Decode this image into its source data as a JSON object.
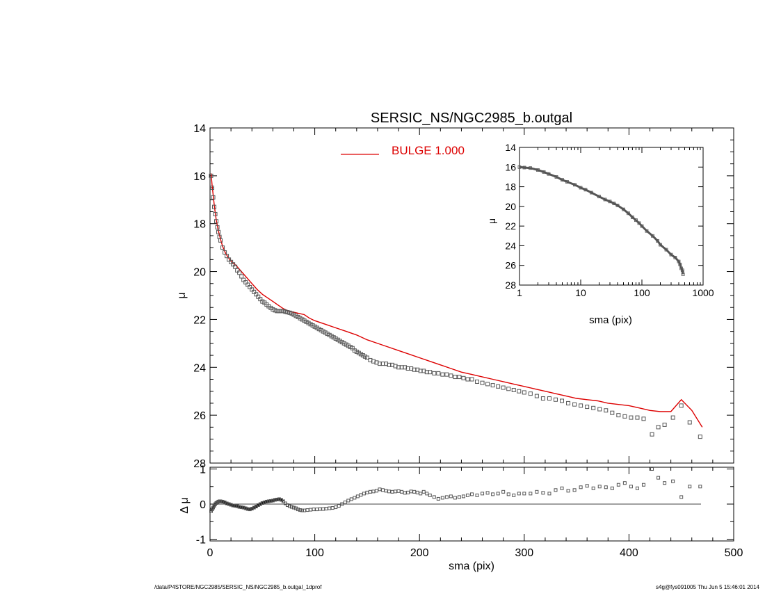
{
  "chart_data": [
    {
      "type": "scatter",
      "title": "SERSIC_NS/NGC2985_b.outgal",
      "xlabel": "",
      "ylabel": "μ",
      "xlim": [
        0,
        500
      ],
      "ylim": [
        28,
        14
      ],
      "y_inverted": true,
      "yticks": [
        "14",
        "16",
        "18",
        "20",
        "22",
        "24",
        "26",
        "28"
      ],
      "legend": {
        "label": "BULGE  1.000",
        "color": "#dd0000",
        "placement": "top-center"
      },
      "series": [
        {
          "kind": "points",
          "marker": "open-square",
          "color": "#555555",
          "x": [
            1,
            2,
            3,
            4,
            5,
            6,
            7,
            8,
            9,
            10,
            12,
            14,
            16,
            18,
            20,
            22,
            24,
            26,
            28,
            30,
            32,
            34,
            36,
            38,
            40,
            42,
            44,
            46,
            48,
            50,
            52,
            54,
            56,
            58,
            60,
            62,
            64,
            66,
            68,
            70,
            72,
            74,
            76,
            78,
            80,
            82,
            84,
            86,
            88,
            90,
            92,
            94,
            96,
            98,
            100,
            102,
            104,
            106,
            108,
            110,
            112,
            114,
            116,
            118,
            120,
            122,
            124,
            126,
            128,
            130,
            132,
            134,
            136,
            138,
            140,
            142,
            144,
            146,
            148,
            150,
            153,
            156,
            159,
            162,
            165,
            168,
            171,
            174,
            177,
            180,
            183,
            186,
            189,
            192,
            195,
            198,
            201,
            204,
            207,
            210,
            214,
            218,
            222,
            226,
            230,
            234,
            238,
            242,
            246,
            250,
            255,
            260,
            265,
            270,
            275,
            280,
            285,
            290,
            295,
            300,
            306,
            312,
            318,
            324,
            330,
            336,
            342,
            348,
            354,
            360,
            366,
            372,
            378,
            384,
            390,
            396,
            402,
            408,
            414,
            422,
            428,
            434,
            442,
            450,
            458,
            468
          ],
          "y": [
            16.0,
            16.5,
            16.9,
            17.3,
            17.6,
            17.9,
            18.15,
            18.35,
            18.55,
            18.7,
            19.0,
            19.2,
            19.35,
            19.5,
            19.6,
            19.7,
            19.8,
            19.95,
            20.05,
            20.2,
            20.35,
            20.45,
            20.55,
            20.65,
            20.75,
            20.85,
            20.95,
            21.05,
            21.15,
            21.25,
            21.3,
            21.38,
            21.45,
            21.52,
            21.58,
            21.62,
            21.65,
            21.65,
            21.65,
            21.65,
            21.68,
            21.7,
            21.72,
            21.75,
            21.8,
            21.85,
            21.9,
            21.95,
            22.0,
            22.05,
            22.1,
            22.15,
            22.2,
            22.25,
            22.3,
            22.35,
            22.4,
            22.45,
            22.5,
            22.55,
            22.6,
            22.65,
            22.7,
            22.75,
            22.8,
            22.85,
            22.9,
            22.95,
            23.0,
            23.05,
            23.1,
            23.15,
            23.2,
            23.3,
            23.35,
            23.4,
            23.45,
            23.5,
            23.55,
            23.6,
            23.7,
            23.75,
            23.8,
            23.85,
            23.85,
            23.85,
            23.9,
            23.9,
            23.95,
            24.0,
            24.0,
            24.0,
            24.05,
            24.05,
            24.1,
            24.1,
            24.15,
            24.15,
            24.2,
            24.2,
            24.25,
            24.25,
            24.3,
            24.3,
            24.35,
            24.4,
            24.4,
            24.45,
            24.5,
            24.5,
            24.6,
            24.65,
            24.7,
            24.75,
            24.8,
            24.85,
            24.9,
            24.95,
            25.0,
            25.05,
            25.1,
            25.2,
            25.3,
            25.3,
            25.35,
            25.4,
            25.5,
            25.55,
            25.6,
            25.65,
            25.7,
            25.75,
            25.8,
            25.9,
            26.0,
            26.05,
            26.1,
            26.1,
            26.15,
            26.8,
            26.5,
            26.4,
            26.1,
            25.6,
            26.3,
            26.9
          ]
        },
        {
          "kind": "line",
          "name": "BULGE  1.000",
          "color": "#dd0000",
          "x": [
            1,
            2,
            3,
            4,
            5,
            6,
            8,
            10,
            12,
            15,
            18,
            21,
            25,
            30,
            35,
            40,
            45,
            50,
            55,
            60,
            65,
            70,
            75,
            80,
            85,
            90,
            95,
            100,
            110,
            120,
            130,
            140,
            150,
            160,
            170,
            180,
            190,
            200,
            210,
            220,
            230,
            240,
            250,
            260,
            270,
            280,
            290,
            300,
            310,
            320,
            330,
            340,
            350,
            360,
            370,
            380,
            390,
            400,
            410,
            420,
            430,
            440,
            450,
            460,
            470
          ],
          "y": [
            15.9,
            16.4,
            16.8,
            17.2,
            17.55,
            17.85,
            18.3,
            18.65,
            18.95,
            19.25,
            19.45,
            19.6,
            19.75,
            20.0,
            20.25,
            20.5,
            20.75,
            20.95,
            21.1,
            21.25,
            21.4,
            21.55,
            21.65,
            21.7,
            21.75,
            21.8,
            21.95,
            22.05,
            22.2,
            22.35,
            22.5,
            22.65,
            22.85,
            23.0,
            23.15,
            23.3,
            23.45,
            23.6,
            23.75,
            23.9,
            24.05,
            24.2,
            24.3,
            24.4,
            24.5,
            24.6,
            24.7,
            24.8,
            24.9,
            25.0,
            25.1,
            25.2,
            25.3,
            25.35,
            25.4,
            25.5,
            25.55,
            25.6,
            25.7,
            25.8,
            25.85,
            25.85,
            25.35,
            25.8,
            26.5
          ]
        }
      ]
    },
    {
      "type": "scatter",
      "title": "",
      "xlabel": "sma (pix)",
      "ylabel": "μ",
      "xscale": "log",
      "xlim": [
        1,
        1000
      ],
      "ylim": [
        28,
        14
      ],
      "y_inverted": true,
      "xticks": [
        "1",
        "10",
        "100",
        "1000"
      ],
      "yticks": [
        "14",
        "16",
        "18",
        "20",
        "22",
        "24",
        "26",
        "28"
      ],
      "series": [
        {
          "kind": "points",
          "marker": "open-square",
          "color": "#555555",
          "x": [
            1,
            1.2,
            1.5,
            2,
            2.5,
            3,
            4,
            5,
            6,
            8,
            10,
            12,
            15,
            20,
            25,
            30,
            35,
            40,
            50,
            60,
            70,
            80,
            90,
            100,
            120,
            150,
            180,
            200,
            250,
            300,
            350,
            400,
            420,
            440,
            460,
            470
          ],
          "y": [
            16.0,
            16.05,
            16.1,
            16.3,
            16.5,
            16.7,
            17.0,
            17.3,
            17.5,
            17.8,
            18.1,
            18.3,
            18.6,
            19.0,
            19.3,
            19.5,
            19.7,
            19.9,
            20.3,
            20.7,
            21.1,
            21.4,
            21.7,
            22.0,
            22.5,
            23.0,
            23.5,
            23.9,
            24.4,
            24.9,
            25.2,
            25.6,
            25.9,
            26.3,
            26.5,
            26.9
          ]
        }
      ]
    },
    {
      "type": "scatter",
      "title": "",
      "xlabel": "sma (pix)",
      "ylabel": "Δ μ",
      "xlim": [
        0,
        500
      ],
      "ylim": [
        -1,
        1
      ],
      "xticks": [
        "0",
        "100",
        "200",
        "300",
        "400",
        "500"
      ],
      "yticks": [
        "-1",
        "0",
        "1"
      ],
      "series": [
        {
          "kind": "points",
          "marker": "open-square",
          "color": "#555555",
          "x": [
            1,
            2,
            3,
            4,
            5,
            6,
            7,
            8,
            9,
            10,
            12,
            14,
            16,
            18,
            20,
            22,
            24,
            26,
            28,
            30,
            32,
            34,
            36,
            38,
            40,
            42,
            44,
            46,
            48,
            50,
            52,
            54,
            56,
            58,
            60,
            62,
            64,
            66,
            68,
            70,
            72,
            74,
            76,
            78,
            80,
            82,
            84,
            86,
            88,
            90,
            93,
            96,
            99,
            102,
            105,
            108,
            111,
            114,
            117,
            120,
            123,
            126,
            129,
            132,
            135,
            138,
            141,
            144,
            147,
            150,
            153,
            156,
            159,
            162,
            165,
            168,
            171,
            174,
            177,
            180,
            183,
            186,
            189,
            192,
            195,
            198,
            201,
            204,
            207,
            210,
            214,
            218,
            222,
            226,
            230,
            234,
            238,
            242,
            246,
            250,
            255,
            260,
            265,
            270,
            275,
            280,
            285,
            290,
            295,
            300,
            306,
            312,
            318,
            324,
            330,
            336,
            342,
            348,
            354,
            360,
            366,
            372,
            378,
            384,
            390,
            396,
            402,
            408,
            414,
            422,
            428,
            434,
            442,
            450,
            458,
            468
          ],
          "y": [
            -0.2,
            -0.15,
            -0.1,
            -0.05,
            0.0,
            0.03,
            0.05,
            0.07,
            0.08,
            0.08,
            0.07,
            0.05,
            0.02,
            0.0,
            -0.02,
            -0.04,
            -0.05,
            -0.06,
            -0.08,
            -0.09,
            -0.1,
            -0.12,
            -0.14,
            -0.15,
            -0.13,
            -0.1,
            -0.07,
            -0.03,
            0.0,
            0.03,
            0.05,
            0.07,
            0.08,
            0.09,
            0.1,
            0.12,
            0.13,
            0.14,
            0.12,
            0.08,
            0.02,
            -0.03,
            -0.06,
            -0.08,
            -0.1,
            -0.12,
            -0.15,
            -0.17,
            -0.18,
            -0.18,
            -0.17,
            -0.16,
            -0.15,
            -0.15,
            -0.14,
            -0.14,
            -0.13,
            -0.12,
            -0.11,
            -0.09,
            -0.05,
            0.0,
            0.05,
            0.1,
            0.14,
            0.18,
            0.22,
            0.26,
            0.3,
            0.33,
            0.35,
            0.36,
            0.38,
            0.42,
            0.4,
            0.38,
            0.36,
            0.35,
            0.36,
            0.37,
            0.35,
            0.32,
            0.33,
            0.36,
            0.35,
            0.33,
            0.3,
            0.35,
            0.3,
            0.25,
            0.2,
            0.15,
            0.18,
            0.2,
            0.22,
            0.18,
            0.2,
            0.22,
            0.25,
            0.28,
            0.25,
            0.3,
            0.32,
            0.28,
            0.3,
            0.35,
            0.28,
            0.25,
            0.3,
            0.3,
            0.3,
            0.35,
            0.32,
            0.3,
            0.4,
            0.45,
            0.38,
            0.4,
            0.48,
            0.52,
            0.45,
            0.5,
            0.48,
            0.45,
            0.55,
            0.6,
            0.5,
            0.45,
            0.55,
            1.0,
            0.75,
            0.6,
            0.65,
            0.2,
            0.5,
            0.5
          ]
        }
      ]
    }
  ],
  "footer": {
    "left": "/data/P4STORE/NGC2985/SERSIC_NS/NGC2985_b.outgal_1dprof",
    "right": "s4g@fys091005  Thu Jun  5 15:46:01 2014"
  }
}
